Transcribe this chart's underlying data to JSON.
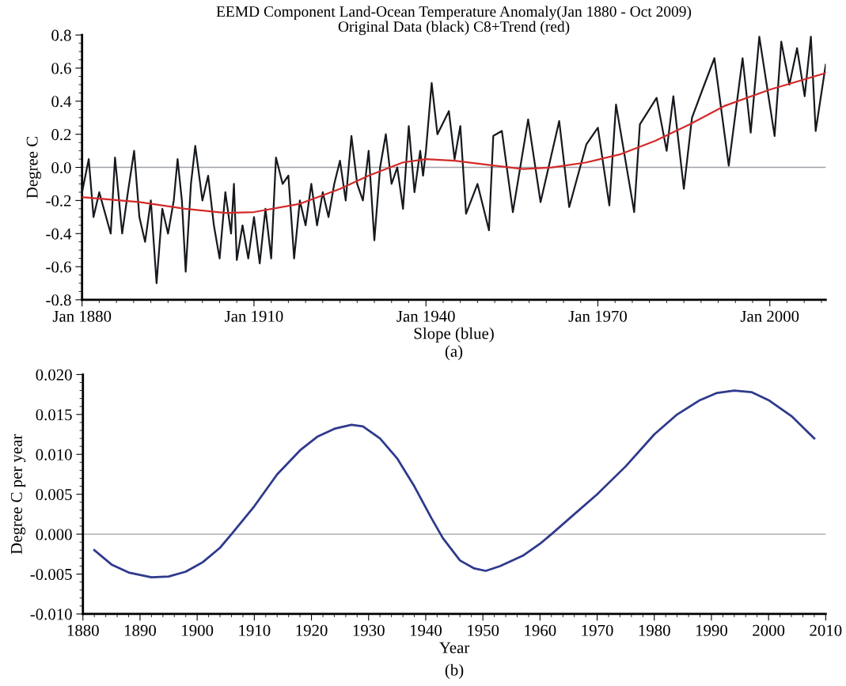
{
  "chart_data": [
    {
      "type": "line",
      "title": "EEMD Component Land-Ocean Temperature Anomaly(Jan 1880 - Oct 2009)",
      "subtitle": "Original Data (black) C8+Trend (red)",
      "xlabel": "Slope (blue)",
      "ylabel": "Degree C",
      "annotations": [
        "(a)"
      ],
      "xlim": [
        "1880-01",
        "2009-10"
      ],
      "xticks": [
        {
          "value": "1880-01",
          "label": "Jan 1880"
        },
        {
          "value": "1910-01",
          "label": "Jan 1910"
        },
        {
          "value": "1940-01",
          "label": "Jan 1940"
        },
        {
          "value": "1970-01",
          "label": "Jan 1970"
        },
        {
          "value": "2000-01",
          "label": "Jan 2000"
        }
      ],
      "ylim": [
        -0.8,
        0.8
      ],
      "yticks": [
        {
          "value": -0.8,
          "label": "-0.8"
        },
        {
          "value": -0.6,
          "label": "-0.6"
        },
        {
          "value": -0.4,
          "label": "-0.4"
        },
        {
          "value": -0.2,
          "label": "-0.2"
        },
        {
          "value": 0,
          "label": "0.0"
        },
        {
          "value": 0.2,
          "label": "0.2"
        },
        {
          "value": 0.4,
          "label": "0.4"
        },
        {
          "value": 0.6,
          "label": "0.6"
        },
        {
          "value": 0.8,
          "label": "0.8"
        }
      ],
      "ref_lines": [
        {
          "axis": "y",
          "value": 0,
          "color": "#a0a0a8"
        }
      ],
      "grid": false,
      "legend": false,
      "marker": "none",
      "line_style": "solid",
      "series": [
        {
          "color": "#161a1e",
          "x": [
            "1880-01",
            "1881-03",
            "1882-01",
            "1883-01",
            "1885-01",
            "1885-10",
            "1887-01",
            "1888-01",
            "1889-02",
            "1890-01",
            "1891-01",
            "1892-01",
            "1893-01",
            "1894-01",
            "1895-01",
            "1896-01",
            "1896-09",
            "1897-06",
            "1898-02",
            "1899-01",
            "1899-10",
            "1901-01",
            "1902-01",
            "1903-01",
            "1904-01",
            "1905-01",
            "1906-01",
            "1906-07",
            "1907-01",
            "1908-01",
            "1909-01",
            "1910-01",
            "1911-01",
            "1912-01",
            "1913-01",
            "1913-11",
            "1915-01",
            "1916-01",
            "1917-01",
            "1918-01",
            "1919-01",
            "1920-01",
            "1921-01",
            "1922-01",
            "1923-01",
            "1924-01",
            "1925-01",
            "1926-01",
            "1927-01",
            "1928-01",
            "1929-01",
            "1930-01",
            "1931-01",
            "1932-01",
            "1933-01",
            "1934-01",
            "1935-01",
            "1936-01",
            "1937-01",
            "1938-01",
            "1939-01",
            "1939-07",
            "1940-01",
            "1941-01",
            "1942-01",
            "1944-01",
            "1945-01",
            "1946-01",
            "1947-01",
            "1949-01",
            "1951-01",
            "1951-10",
            "1953-04",
            "1955-03",
            "1957-11",
            "1960-01",
            "1963-04",
            "1965-01",
            "1968-01",
            "1970-01",
            "1972-01",
            "1973-03",
            "1976-05",
            "1977-05",
            "1980-04",
            "1982-01",
            "1983-03",
            "1985-01",
            "1986-06",
            "1988-04",
            "1990-05",
            "1992-11",
            "1995-04",
            "1996-09",
            "1998-03",
            "2000-11",
            "2002-01",
            "2003-06",
            "2004-10",
            "2006-02",
            "2007-03",
            "2008-01",
            "2009-10"
          ],
          "values": [
            -0.15,
            0.05,
            -0.3,
            -0.15,
            -0.4,
            0.06,
            -0.4,
            -0.15,
            0.1,
            -0.3,
            -0.45,
            -0.2,
            -0.7,
            -0.25,
            -0.4,
            -0.2,
            0.05,
            -0.2,
            -0.63,
            -0.1,
            0.13,
            -0.2,
            -0.05,
            -0.35,
            -0.55,
            -0.15,
            -0.4,
            -0.1,
            -0.56,
            -0.35,
            -0.55,
            -0.3,
            -0.58,
            -0.25,
            -0.55,
            0.06,
            -0.1,
            -0.05,
            -0.55,
            -0.2,
            -0.35,
            -0.1,
            -0.35,
            -0.15,
            -0.3,
            -0.1,
            0.04,
            -0.2,
            0.19,
            -0.1,
            -0.2,
            0.1,
            -0.44,
            0.0,
            0.2,
            -0.1,
            0.0,
            -0.25,
            0.25,
            -0.15,
            0.1,
            -0.05,
            0.1,
            0.51,
            0.2,
            0.34,
            0.05,
            0.25,
            -0.28,
            -0.1,
            -0.38,
            0.19,
            0.22,
            -0.27,
            0.29,
            -0.21,
            0.28,
            -0.24,
            0.14,
            0.24,
            -0.23,
            0.38,
            -0.27,
            0.26,
            0.42,
            0.1,
            0.43,
            -0.13,
            0.3,
            0.47,
            0.66,
            0.01,
            0.66,
            0.21,
            0.79,
            0.19,
            0.76,
            0.5,
            0.72,
            0.43,
            0.79,
            0.22,
            0.62
          ]
        },
        {
          "color": "#d42a2a",
          "x": [
            "1880-01",
            "1890-01",
            "1898-01",
            "1905-01",
            "1910-01",
            "1918-01",
            "1925-01",
            "1930-01",
            "1936-01",
            "1940-01",
            "1945-01",
            "1952-01",
            "1957-01",
            "1962-01",
            "1968-01",
            "1974-01",
            "1980-01",
            "1986-01",
            "1992-01",
            "2000-01",
            "2009-10"
          ],
          "values": [
            -0.18,
            -0.21,
            -0.25,
            -0.275,
            -0.27,
            -0.22,
            -0.13,
            -0.05,
            0.03,
            0.05,
            0.04,
            0.01,
            -0.01,
            0.0,
            0.03,
            0.08,
            0.16,
            0.26,
            0.37,
            0.47,
            0.57
          ]
        }
      ]
    },
    {
      "type": "line",
      "xlabel": "Year",
      "ylabel": "Degree C per year",
      "annotations": [
        "(b)"
      ],
      "xlim": [
        1880,
        2010
      ],
      "xticks": [
        1880,
        1890,
        1900,
        1910,
        1920,
        1930,
        1940,
        1950,
        1960,
        1970,
        1980,
        1990,
        2000,
        2010
      ],
      "ylim": [
        -0.01,
        0.02
      ],
      "yticks": [
        {
          "value": -0.01,
          "label": "-0.010"
        },
        {
          "value": -0.005,
          "label": "-0.005"
        },
        {
          "value": 0,
          "label": "0.000"
        },
        {
          "value": 0.005,
          "label": "0.005"
        },
        {
          "value": 0.01,
          "label": "0.010"
        },
        {
          "value": 0.015,
          "label": "0.015"
        },
        {
          "value": 0.02,
          "label": "0.020"
        }
      ],
      "ref_lines": [
        {
          "axis": "y",
          "value": 0,
          "color": "#a0a0a8"
        }
      ],
      "grid": false,
      "legend": false,
      "marker": "none",
      "line_style": "solid",
      "series": [
        {
          "color": "#2e3a8c",
          "x": [
            1882,
            1885,
            1888,
            1892,
            1895,
            1898,
            1901,
            1904,
            1906,
            1910,
            1914,
            1918,
            1921,
            1924,
            1927,
            1929,
            1932,
            1935,
            1938,
            1941,
            1943,
            1946,
            1948.5,
            1950.5,
            1953,
            1957,
            1960,
            1962,
            1966,
            1970,
            1975,
            1980,
            1984,
            1988,
            1991,
            1994,
            1997,
            2000,
            2004,
            2008
          ],
          "values": [
            -0.002,
            -0.0038,
            -0.0048,
            -0.0054,
            -0.0053,
            -0.0047,
            -0.0035,
            -0.0017,
            0.0,
            0.0035,
            0.0075,
            0.0105,
            0.0122,
            0.0132,
            0.0137,
            0.0135,
            0.012,
            0.0095,
            0.006,
            0.002,
            -0.0005,
            -0.0033,
            -0.0043,
            -0.0046,
            -0.004,
            -0.0027,
            -0.0012,
            0.0,
            0.0025,
            0.005,
            0.0085,
            0.0125,
            0.015,
            0.0168,
            0.0177,
            0.018,
            0.0178,
            0.0168,
            0.0148,
            0.012
          ]
        }
      ]
    }
  ]
}
